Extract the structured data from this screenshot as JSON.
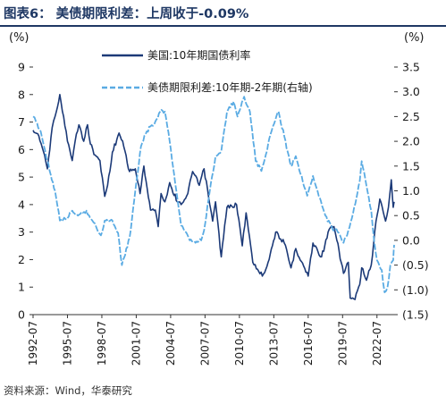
{
  "figure": {
    "title": "图表6：  美债期限利差：上周收于-0.09%",
    "source": "资料来源：Wind，华泰研究"
  },
  "colors": {
    "title": "#1f3864",
    "primary_series": "#1c3a78",
    "secondary_series": "#5aabe3",
    "axis": "#333333"
  },
  "chart_data": {
    "type": "line",
    "left_unit": "(%)",
    "right_unit": "(%)",
    "ylim_left": [
      0,
      9
    ],
    "ylim_right": [
      -1.5,
      3.5
    ],
    "left_ticks": [
      "0",
      "1",
      "2",
      "3",
      "4",
      "5",
      "6",
      "7",
      "8",
      "9"
    ],
    "right_ticks": [
      "(1.5)",
      "(1.0)",
      "(0.5)",
      "0.0",
      "0.5",
      "1.0",
      "1.5",
      "2.0",
      "2.5",
      "3.0",
      "3.5"
    ],
    "x_tick_labels": [
      "1992-07",
      "1995-07",
      "1998-07",
      "2001-07",
      "2004-07",
      "2007-07",
      "2010-07",
      "2013-07",
      "2016-07",
      "2019-07",
      "2022-07"
    ],
    "x_range": [
      "1992-07",
      "2024-01"
    ],
    "legend_position": "top",
    "series": [
      {
        "name": "美国:10年期国债利率",
        "axis": "left",
        "style": "solid",
        "points": [
          [
            "1992-07",
            6.7
          ],
          [
            "1993-01",
            6.5
          ],
          [
            "1993-07",
            5.8
          ],
          [
            "1993-10",
            5.3
          ],
          [
            "1994-03",
            6.8
          ],
          [
            "1994-06",
            7.2
          ],
          [
            "1994-11",
            8.0
          ],
          [
            "1995-03",
            7.2
          ],
          [
            "1995-07",
            6.3
          ],
          [
            "1995-12",
            5.6
          ],
          [
            "1996-03",
            6.3
          ],
          [
            "1996-07",
            6.9
          ],
          [
            "1996-12",
            6.3
          ],
          [
            "1997-04",
            6.9
          ],
          [
            "1997-07",
            6.2
          ],
          [
            "1997-12",
            5.8
          ],
          [
            "1998-05",
            5.6
          ],
          [
            "1998-10",
            4.3
          ],
          [
            "1999-01",
            4.7
          ],
          [
            "1999-06",
            5.9
          ],
          [
            "2000-01",
            6.6
          ],
          [
            "2000-06",
            6.1
          ],
          [
            "2000-12",
            5.2
          ],
          [
            "2001-06",
            5.3
          ],
          [
            "2001-11",
            4.4
          ],
          [
            "2002-03",
            5.4
          ],
          [
            "2002-10",
            3.8
          ],
          [
            "2003-03",
            3.8
          ],
          [
            "2003-06",
            3.2
          ],
          [
            "2003-09",
            4.4
          ],
          [
            "2004-01",
            4.1
          ],
          [
            "2004-06",
            4.8
          ],
          [
            "2005-02",
            4.1
          ],
          [
            "2005-06",
            4.0
          ],
          [
            "2006-01",
            4.4
          ],
          [
            "2006-06",
            5.2
          ],
          [
            "2007-01",
            4.7
          ],
          [
            "2007-06",
            5.3
          ],
          [
            "2007-12",
            4.0
          ],
          [
            "2008-03",
            3.4
          ],
          [
            "2008-06",
            4.1
          ],
          [
            "2008-12",
            2.1
          ],
          [
            "2009-06",
            3.9
          ],
          [
            "2010-04",
            4.0
          ],
          [
            "2010-10",
            2.5
          ],
          [
            "2011-02",
            3.7
          ],
          [
            "2011-09",
            1.9
          ],
          [
            "2012-07",
            1.4
          ],
          [
            "2013-01",
            1.9
          ],
          [
            "2013-09",
            3.0
          ],
          [
            "2014-06",
            2.6
          ],
          [
            "2015-01",
            1.7
          ],
          [
            "2015-06",
            2.4
          ],
          [
            "2016-07",
            1.4
          ],
          [
            "2016-12",
            2.6
          ],
          [
            "2017-09",
            2.1
          ],
          [
            "2018-05",
            3.1
          ],
          [
            "2018-10",
            3.2
          ],
          [
            "2019-01",
            2.7
          ],
          [
            "2019-08",
            1.5
          ],
          [
            "2020-01",
            1.9
          ],
          [
            "2020-03",
            0.6
          ],
          [
            "2020-08",
            0.55
          ],
          [
            "2021-01",
            1.1
          ],
          [
            "2021-03",
            1.7
          ],
          [
            "2021-08",
            1.25
          ],
          [
            "2022-01",
            1.8
          ],
          [
            "2022-06",
            3.4
          ],
          [
            "2022-10",
            4.2
          ],
          [
            "2023-04",
            3.4
          ],
          [
            "2023-07",
            3.9
          ],
          [
            "2023-10",
            4.9
          ],
          [
            "2023-12",
            3.9
          ],
          [
            "2024-01",
            4.1
          ]
        ]
      },
      {
        "name": "美债期限利差:10年期-2年期(右轴)",
        "axis": "right",
        "style": "dashed",
        "points": [
          [
            "1992-07",
            2.5
          ],
          [
            "1992-10",
            2.4
          ],
          [
            "1993-03",
            2.2
          ],
          [
            "1993-10",
            1.6
          ],
          [
            "1994-06",
            1.0
          ],
          [
            "1994-11",
            0.4
          ],
          [
            "1995-07",
            0.45
          ],
          [
            "1995-12",
            0.6
          ],
          [
            "1996-06",
            0.5
          ],
          [
            "1997-03",
            0.6
          ],
          [
            "1997-09",
            0.4
          ],
          [
            "1998-06",
            0.1
          ],
          [
            "1998-10",
            0.4
          ],
          [
            "1999-06",
            0.4
          ],
          [
            "1999-12",
            0.15
          ],
          [
            "2000-04",
            -0.5
          ],
          [
            "2000-12",
            0.05
          ],
          [
            "2001-06",
            1.0
          ],
          [
            "2001-12",
            1.9
          ],
          [
            "2002-06",
            2.2
          ],
          [
            "2003-03",
            2.4
          ],
          [
            "2003-08",
            2.6
          ],
          [
            "2004-01",
            2.6
          ],
          [
            "2004-06",
            2.0
          ],
          [
            "2005-01",
            1.0
          ],
          [
            "2005-06",
            0.3
          ],
          [
            "2006-03",
            0.0
          ],
          [
            "2006-09",
            -0.05
          ],
          [
            "2007-03",
            0.0
          ],
          [
            "2007-06",
            0.2
          ],
          [
            "2007-12",
            1.0
          ],
          [
            "2008-06",
            1.7
          ],
          [
            "2008-12",
            1.8
          ],
          [
            "2009-06",
            2.6
          ],
          [
            "2010-01",
            2.8
          ],
          [
            "2010-05",
            2.5
          ],
          [
            "2010-12",
            2.9
          ],
          [
            "2011-06",
            2.6
          ],
          [
            "2011-12",
            1.6
          ],
          [
            "2012-06",
            1.4
          ],
          [
            "2013-06",
            2.3
          ],
          [
            "2013-12",
            2.6
          ],
          [
            "2014-06",
            2.1
          ],
          [
            "2015-01",
            1.5
          ],
          [
            "2015-06",
            1.7
          ],
          [
            "2016-06",
            0.9
          ],
          [
            "2016-12",
            1.3
          ],
          [
            "2017-06",
            0.9
          ],
          [
            "2018-01",
            0.5
          ],
          [
            "2018-08",
            0.25
          ],
          [
            "2019-03",
            0.15
          ],
          [
            "2019-08",
            -0.05
          ],
          [
            "2020-01",
            0.2
          ],
          [
            "2020-06",
            0.55
          ],
          [
            "2021-01",
            1.2
          ],
          [
            "2021-03",
            1.6
          ],
          [
            "2021-08",
            1.1
          ],
          [
            "2022-01",
            0.6
          ],
          [
            "2022-04",
            0.0
          ],
          [
            "2022-07",
            -0.4
          ],
          [
            "2022-12",
            -0.6
          ],
          [
            "2023-03",
            -1.05
          ],
          [
            "2023-06",
            -0.95
          ],
          [
            "2023-09",
            -0.5
          ],
          [
            "2023-12",
            -0.4
          ],
          [
            "2024-01",
            -0.09
          ]
        ]
      }
    ]
  }
}
